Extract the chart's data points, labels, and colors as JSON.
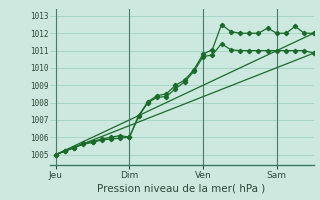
{
  "title": "",
  "xlabel": "Pression niveau de la mer( hPa )",
  "bg_color": "#cce8df",
  "grid_color": "#a8d4c8",
  "line_color": "#1a6b2a",
  "vline_color": "#4a7a6a",
  "border_color": "#3a7a60",
  "x_ticks_labels": [
    "Jeu",
    "Dim",
    "Ven",
    "Sam"
  ],
  "x_ticks_pos": [
    0,
    48,
    96,
    144
  ],
  "xlim": [
    -4,
    168
  ],
  "ylim": [
    1004.4,
    1013.4
  ],
  "yticks": [
    1005,
    1006,
    1007,
    1008,
    1009,
    1010,
    1011,
    1012,
    1013
  ],
  "series1_x": [
    0,
    6,
    12,
    18,
    24,
    30,
    36,
    42,
    48,
    54,
    60,
    66,
    72,
    78,
    84,
    90,
    96,
    102,
    108,
    114,
    120,
    126,
    132,
    138,
    144,
    150,
    156,
    162,
    168
  ],
  "series1_y": [
    1005.0,
    1005.2,
    1005.4,
    1005.6,
    1005.7,
    1005.85,
    1005.9,
    1005.95,
    1006.0,
    1007.2,
    1008.0,
    1008.3,
    1008.35,
    1008.8,
    1009.2,
    1009.8,
    1010.65,
    1010.75,
    1011.4,
    1011.05,
    1011.0,
    1011.0,
    1011.0,
    1011.0,
    1011.0,
    1011.0,
    1011.0,
    1011.0,
    1010.85
  ],
  "series2_x": [
    0,
    6,
    12,
    18,
    24,
    30,
    36,
    42,
    48,
    54,
    60,
    66,
    72,
    78,
    84,
    90,
    96,
    102,
    108,
    114,
    120,
    126,
    132,
    138,
    144,
    150,
    156,
    162,
    168
  ],
  "series2_y": [
    1005.0,
    1005.2,
    1005.4,
    1005.65,
    1005.75,
    1005.9,
    1006.0,
    1006.1,
    1006.0,
    1007.25,
    1008.05,
    1008.4,
    1008.5,
    1009.0,
    1009.3,
    1009.9,
    1010.8,
    1011.05,
    1012.5,
    1012.1,
    1012.0,
    1012.0,
    1012.0,
    1012.3,
    1012.0,
    1012.0,
    1012.4,
    1012.0,
    1012.0
  ],
  "trend1_x": [
    0,
    168
  ],
  "trend1_y": [
    1005.0,
    1010.85
  ],
  "trend2_x": [
    0,
    168
  ],
  "trend2_y": [
    1005.0,
    1012.0
  ]
}
